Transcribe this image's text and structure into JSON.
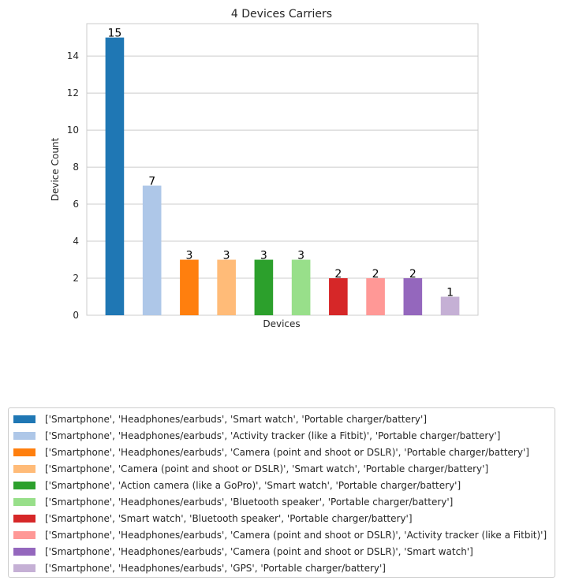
{
  "chart_data": {
    "type": "bar",
    "title": "4 Devices Carriers",
    "xlabel": "Devices",
    "ylabel": "Device Count",
    "ylim": [
      0,
      15.75
    ],
    "yticks": [
      0,
      2,
      4,
      6,
      8,
      10,
      12,
      14
    ],
    "grid": "y",
    "legend_position": "below",
    "categories": [
      "['Smartphone', 'Headphones/earbuds', 'Smart watch', 'Portable charger/battery']",
      "['Smartphone', 'Headphones/earbuds', 'Activity tracker (like a Fitbit)', 'Portable charger/battery']",
      "['Smartphone', 'Headphones/earbuds', 'Camera (point and shoot or DSLR)', 'Portable charger/battery']",
      "['Smartphone', 'Camera (point and shoot or DSLR)', 'Smart watch', 'Portable charger/battery']",
      "['Smartphone', 'Action camera (like a GoPro)', 'Smart watch', 'Portable charger/battery']",
      "['Smartphone', 'Headphones/earbuds', 'Bluetooth speaker', 'Portable charger/battery']",
      "['Smartphone', 'Smart watch', 'Bluetooth speaker', 'Portable charger/battery']",
      "['Smartphone', 'Headphones/earbuds', 'Camera (point and shoot or DSLR)', 'Activity tracker (like a Fitbit)']",
      "['Smartphone', 'Headphones/earbuds', 'Camera (point and shoot or DSLR)', 'Smart watch']",
      "['Smartphone', 'Headphones/earbuds', 'GPS', 'Portable charger/battery']"
    ],
    "values": [
      15,
      7,
      3,
      3,
      3,
      3,
      2,
      2,
      2,
      1
    ],
    "colors": [
      "#1f77b4",
      "#aec7e8",
      "#ff7f0e",
      "#ffbb78",
      "#2ca02c",
      "#98df8a",
      "#d62728",
      "#ff9896",
      "#9467bd",
      "#c5b0d5"
    ]
  }
}
